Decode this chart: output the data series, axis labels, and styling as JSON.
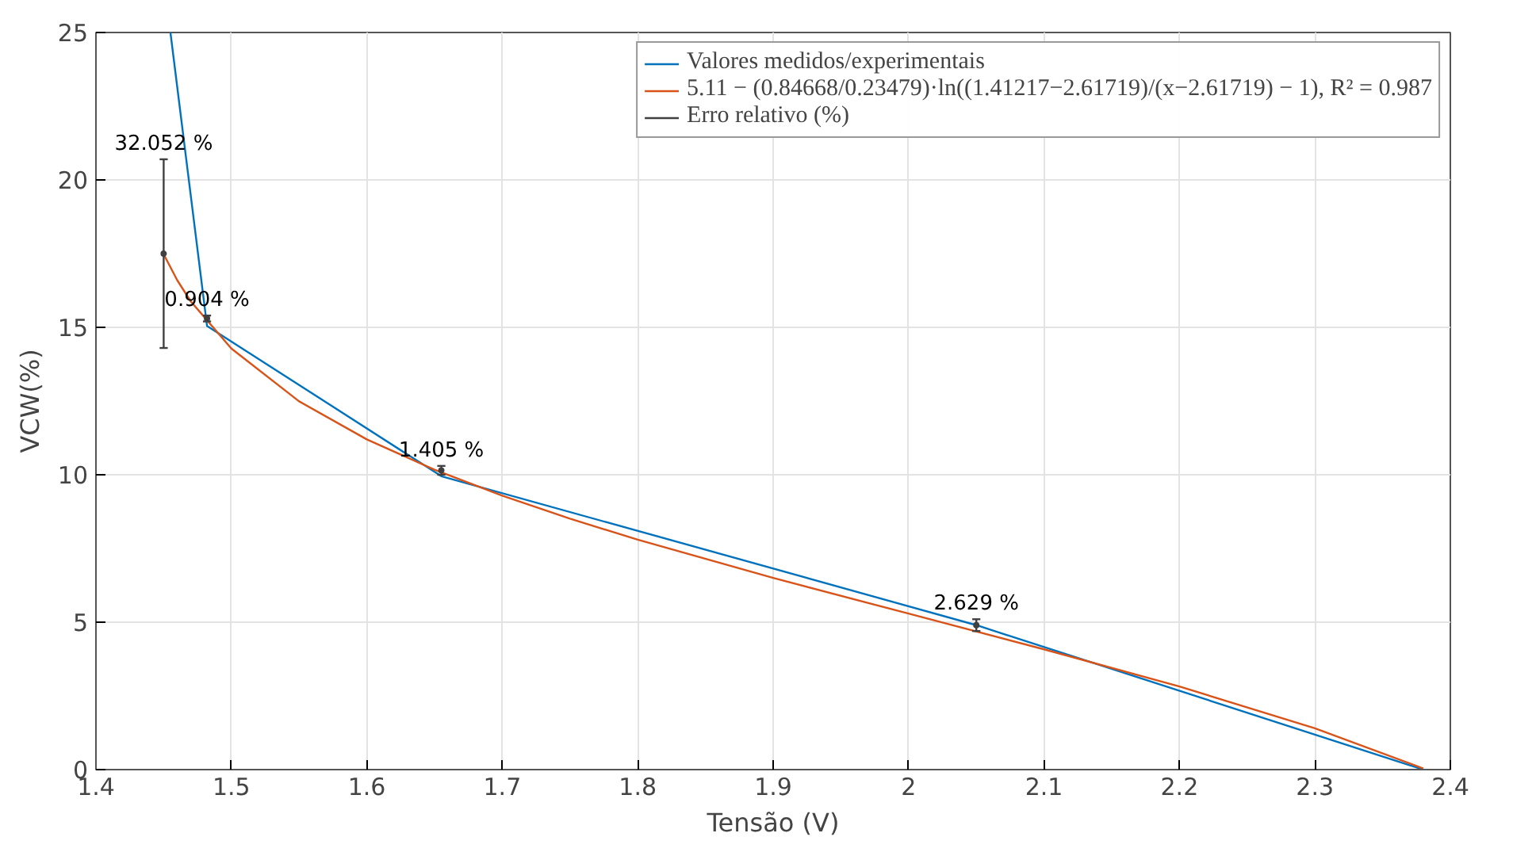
{
  "chart_data": {
    "type": "line",
    "xlabel": "Tensão (V)",
    "ylabel": "VCW(%)",
    "xlim": [
      1.4,
      2.4
    ],
    "ylim": [
      0,
      25
    ],
    "xticks": [
      1.4,
      1.5,
      1.6,
      1.7,
      1.8,
      1.9,
      2,
      2.1,
      2.2,
      2.3,
      2.4
    ],
    "yticks": [
      0,
      5,
      10,
      15,
      20,
      25
    ],
    "grid": true,
    "legend": "top right",
    "line_style": "solid",
    "marker": "none",
    "series": [
      {
        "name": "Valores medidos/experimentais",
        "color": "#0072bd",
        "x": [
          1.455,
          1.482,
          1.655,
          2.05,
          2.38
        ],
        "values": [
          25,
          15.05,
          9.95,
          4.9,
          0
        ]
      },
      {
        "name": "5.11 − (0.84668/0.23479)·ln((1.41217−2.61719)/(x−2.61719) − 1), R² = 0.987",
        "color": "#d95319",
        "x": [
          1.45,
          1.46,
          1.47,
          1.5,
          1.55,
          1.6,
          1.65,
          1.7,
          1.75,
          1.8,
          1.9,
          2.0,
          2.1,
          2.2,
          2.3,
          2.38
        ],
        "values": [
          17.48,
          16.6,
          15.88,
          14.28,
          12.49,
          11.2,
          10.17,
          9.29,
          8.51,
          7.8,
          6.5,
          5.29,
          4.08,
          2.82,
          1.4,
          0.04
        ]
      },
      {
        "name": "Erro relativo (%)",
        "color": "#404040",
        "type": "scatter",
        "marker": "none",
        "x": [
          1.45,
          1.482,
          1.655,
          2.05
        ],
        "values": [
          17.5,
          15.3,
          10.15,
          4.9
        ],
        "errors": [
          [
            14.3,
            20.7
          ],
          [
            15.2,
            15.4
          ],
          [
            10.0,
            10.3
          ],
          [
            4.7,
            5.1
          ]
        ]
      }
    ],
    "annotations": [
      {
        "text": "32.052 %",
        "x": 1.45,
        "y": 20.7
      },
      {
        "text": "0.904 %",
        "x": 1.482,
        "y": 15.4
      },
      {
        "text": "1.405 %",
        "x": 1.655,
        "y": 10.3
      },
      {
        "text": "2.629 %",
        "x": 2.05,
        "y": 5.1
      }
    ]
  }
}
